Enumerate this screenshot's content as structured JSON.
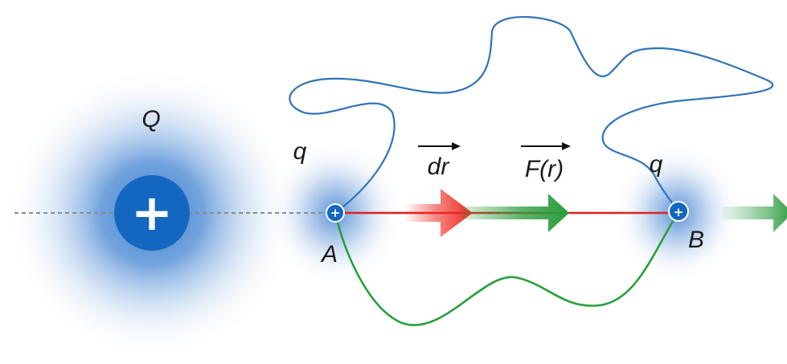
{
  "labels": {
    "source_charge": "Q",
    "test_charge_a": "q",
    "test_charge_b": "q",
    "point_a": "A",
    "point_b": "B",
    "displacement": "dr",
    "force": "F(r)"
  },
  "glyphs": {
    "source_sign": "+",
    "charge_a_sign": "+",
    "charge_b_sign": "+"
  },
  "colors": {
    "charge_blue": "#1467c0",
    "path_blue": "#2f73b8",
    "path_green": "#27a03c",
    "path_red": "#e0201c",
    "arrow_red": "#ee2a22",
    "arrow_green": "#2a9c3d",
    "axis_gray": "#8a8a8a"
  }
}
